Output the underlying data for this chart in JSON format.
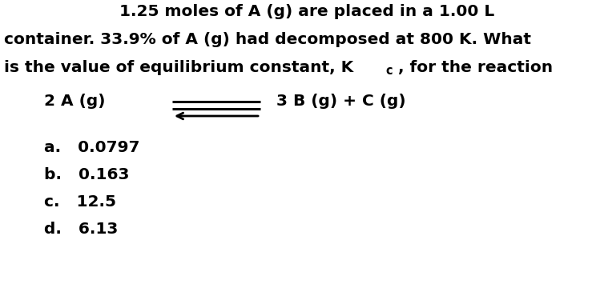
{
  "background_color": "#ffffff",
  "fig_width": 7.49,
  "fig_height": 3.8,
  "dpi": 100,
  "q_line1": "1.25 moles of A (g) are placed in a 1.00 L",
  "q_line2": "container. 33.9% of A (g) had decomposed at 800 K. What",
  "q_line3_part1": "is the value of equilibrium constant, K",
  "q_line3_sub": "c",
  "q_line3_part2": ", for the reaction",
  "reaction_left": "2 A (g)",
  "reaction_right": "3 B (g) + C (g)",
  "answer_a": "a.   0.0797",
  "answer_b": "b.   0.163",
  "answer_c": "c.   12.5",
  "answer_d": "d.   6.13",
  "text_color": "#000000",
  "font_size": 14.5
}
